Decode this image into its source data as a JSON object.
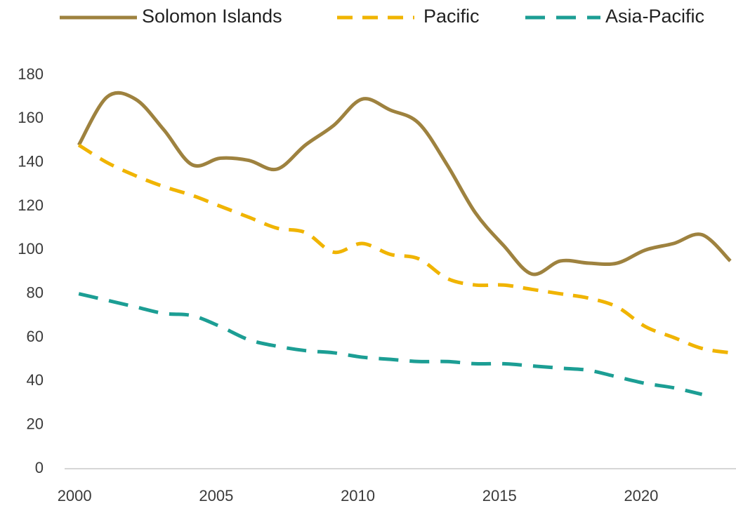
{
  "chart_data": {
    "type": "line",
    "x": [
      2000,
      2001,
      2002,
      2003,
      2004,
      2005,
      2006,
      2007,
      2008,
      2009,
      2010,
      2011,
      2012,
      2013,
      2014,
      2015,
      2016,
      2017,
      2018,
      2019,
      2020,
      2021,
      2022,
      2023
    ],
    "series": [
      {
        "name": "Solomon Islands",
        "color": "#9e823f",
        "line_style": "solid",
        "values": [
          148,
          170,
          169,
          155,
          139,
          142,
          141,
          137,
          148,
          157,
          169,
          164,
          158,
          139,
          117,
          102,
          89,
          95,
          94,
          94,
          100,
          103,
          107,
          95
        ]
      },
      {
        "name": "Pacific",
        "color": "#f0b400",
        "line_style": "dashed",
        "values": [
          148,
          140,
          134,
          129,
          125,
          120,
          115,
          110,
          108,
          99,
          103,
          98,
          96,
          87,
          84,
          84,
          82,
          80,
          78,
          74,
          65,
          60,
          55,
          53
        ]
      },
      {
        "name": "Asia-Pacific",
        "color": "#1c9e94",
        "line_style": "dashed",
        "values": [
          80,
          77,
          74,
          71,
          70,
          65,
          59,
          56,
          54,
          53,
          51,
          50,
          49,
          49,
          48,
          48,
          47,
          46,
          45,
          42,
          39,
          37,
          34,
          null
        ]
      }
    ],
    "xlim": [
      1999.5,
      2023.2
    ],
    "xticks": [
      2000,
      2005,
      2010,
      2015,
      2020
    ],
    "ylim": [
      0,
      180
    ],
    "yticks": [
      0,
      20,
      40,
      60,
      80,
      100,
      120,
      140,
      160,
      180
    ],
    "grid": false,
    "legend": "top"
  }
}
